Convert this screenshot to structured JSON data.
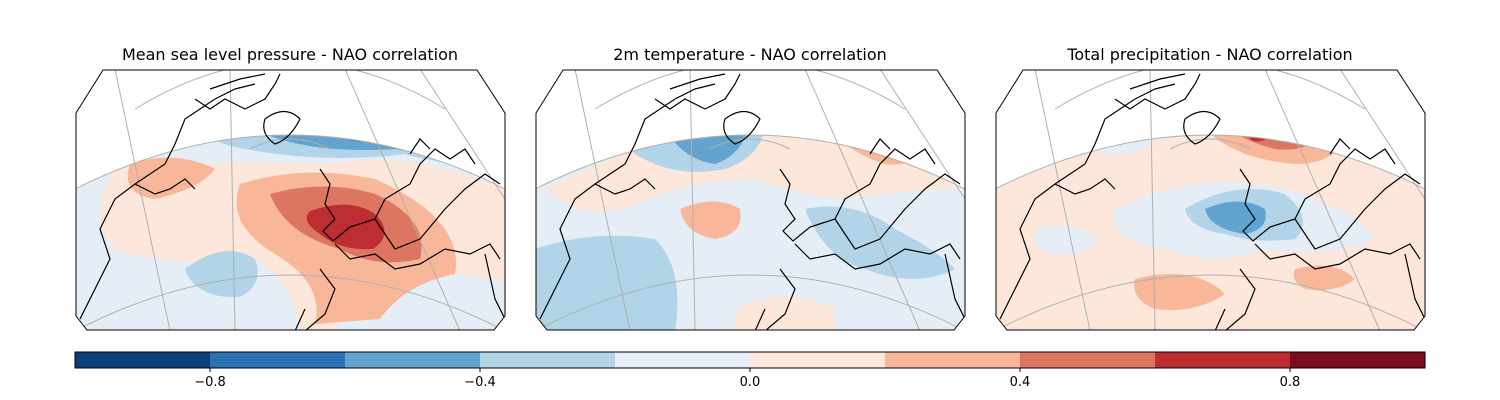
{
  "panels": [
    {
      "id": "mslp",
      "title": "Mean sea level pressure - NAO correlation"
    },
    {
      "id": "t2m",
      "title": "2m temperature - NAO correlation"
    },
    {
      "id": "tp",
      "title": "Total precipitation - NAO correlation"
    }
  ],
  "colorbar": {
    "min": -1.0,
    "max": 1.0,
    "levels": [
      -1.0,
      -0.8,
      -0.6,
      -0.4,
      -0.2,
      0.0,
      0.2,
      0.4,
      0.6,
      0.8,
      1.0
    ],
    "colors": [
      "#0b3f7a",
      "#2c72b4",
      "#63a3cf",
      "#b1d4e8",
      "#e5eef6",
      "#fde6da",
      "#f8b799",
      "#dd7660",
      "#bd2e33",
      "#7c0d1f"
    ],
    "ticks": [
      "−0.8",
      "−0.4",
      "0.0",
      "0.4",
      "0.8"
    ],
    "tick_values": [
      -0.8,
      -0.4,
      0.0,
      0.4,
      0.8
    ]
  },
  "map_style": {
    "background": "#e5eef6",
    "coastline": "#000000",
    "gridline": "#b0b0b0"
  }
}
